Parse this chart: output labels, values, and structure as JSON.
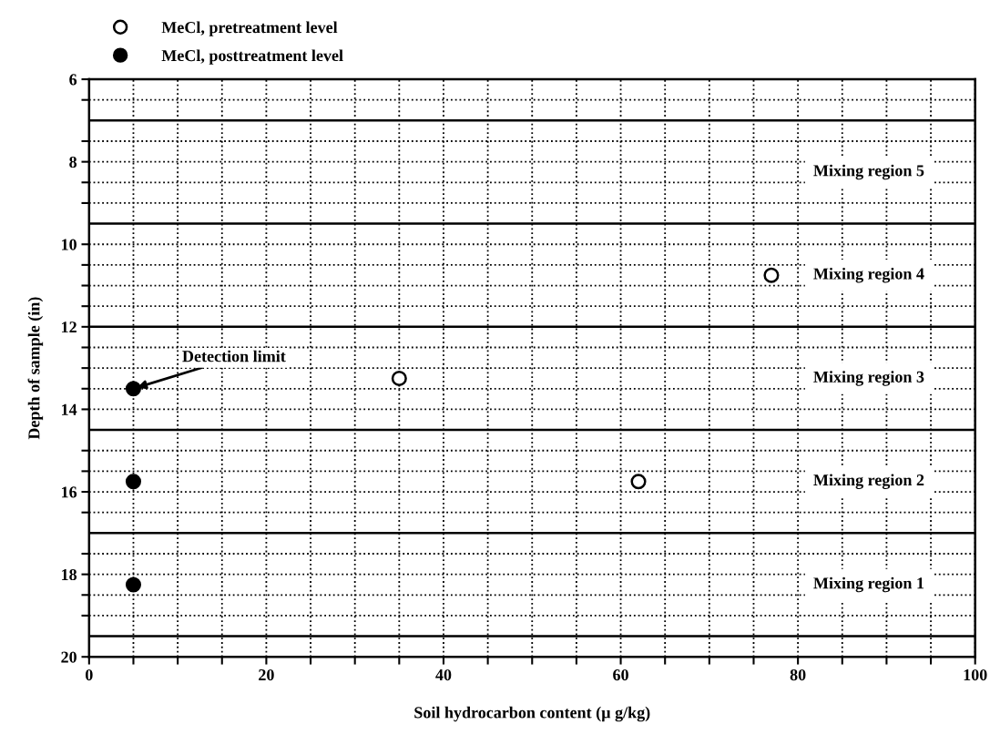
{
  "chart_data": {
    "type": "scatter",
    "xlabel": "Soil hydrocarbon content (µ g/kg)",
    "ylabel": "Depth of sample (in)",
    "xlim": [
      0,
      100
    ],
    "ylim": [
      20,
      6
    ],
    "xticks": [
      0,
      {
        "value": 5,
        "label": null
      },
      {
        "value": 10,
        "label": null
      },
      {
        "value": 15,
        "label": null
      },
      20,
      {
        "value": 25,
        "label": null
      },
      {
        "value": 30,
        "label": null
      },
      {
        "value": 35,
        "label": null
      },
      40,
      {
        "value": 45,
        "label": null
      },
      {
        "value": 50,
        "label": null
      },
      {
        "value": 55,
        "label": null
      },
      60,
      {
        "value": 65,
        "label": null
      },
      {
        "value": 70,
        "label": null
      },
      {
        "value": 75,
        "label": null
      },
      80,
      {
        "value": 85,
        "label": null
      },
      {
        "value": 90,
        "label": null
      },
      {
        "value": 95,
        "label": null
      },
      100
    ],
    "yticks": [
      6,
      {
        "value": 6.5,
        "label": null
      },
      {
        "value": 7.5,
        "label": null
      },
      8,
      {
        "value": 8.5,
        "label": null
      },
      {
        "value": 9,
        "label": null
      },
      10,
      {
        "value": 10.5,
        "label": null
      },
      {
        "value": 11,
        "label": null
      },
      {
        "value": 11.5,
        "label": null
      },
      12,
      {
        "value": 12.5,
        "label": null
      },
      {
        "value": 13,
        "label": null
      },
      {
        "value": 13.5,
        "label": null
      },
      14,
      {
        "value": 15,
        "label": null
      },
      {
        "value": 15.5,
        "label": null
      },
      16,
      {
        "value": 16.5,
        "label": null
      },
      {
        "value": 17.5,
        "label": null
      },
      18,
      {
        "value": 18.5,
        "label": null
      },
      {
        "value": 19,
        "label": null
      },
      20
    ],
    "grid": true,
    "marker": "circle",
    "legend": "top left",
    "series": [
      {
        "name": "MeCl, pretreatment level",
        "color": "#ffffff",
        "x": [
          77,
          35,
          62
        ],
        "values": [
          10.75,
          13.25,
          15.75
        ]
      },
      {
        "name": "MeCl, posttreatment level",
        "color": "#000000",
        "x": [
          5,
          5,
          5
        ],
        "values": [
          13.5,
          15.75,
          18.25
        ]
      }
    ],
    "ref_lines": [
      {
        "axis": "y",
        "value": 7
      },
      {
        "axis": "y",
        "value": 9.5
      },
      {
        "axis": "y",
        "value": 12
      },
      {
        "axis": "y",
        "value": 14.5
      },
      {
        "axis": "y",
        "value": 17
      },
      {
        "axis": "y",
        "value": 19.5
      }
    ],
    "annotations": [
      "Mixing region 5",
      "Mixing region 4",
      "Mixing region 3",
      "Mixing region 2",
      "Mixing region 1",
      {
        "text": "Detection limit",
        "x": 5,
        "y": 13.5
      }
    ]
  }
}
